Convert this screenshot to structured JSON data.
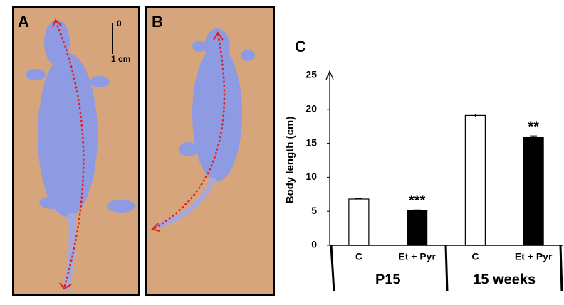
{
  "panels": {
    "a_label": "A",
    "b_label": "B",
    "scale_zero": "0",
    "scale_text": "1 cm"
  },
  "chart_data": {
    "type": "bar",
    "panel_label": "C",
    "y_label": "Body length (cm)",
    "categories": [
      "C",
      "Et + Pyr",
      "C",
      "Et + Pyr"
    ],
    "groups": [
      "P15",
      "15 weeks"
    ],
    "values": [
      6.8,
      5.1,
      19.1,
      15.9
    ],
    "errors": [
      0.05,
      0.1,
      0.2,
      0.2
    ],
    "colors": [
      "#ffffff",
      "#000000",
      "#ffffff",
      "#000000"
    ],
    "significance": [
      null,
      "***",
      null,
      "**"
    ],
    "ylim": [
      0,
      25
    ],
    "yticks": [
      0,
      5,
      10,
      15,
      20,
      25
    ]
  }
}
